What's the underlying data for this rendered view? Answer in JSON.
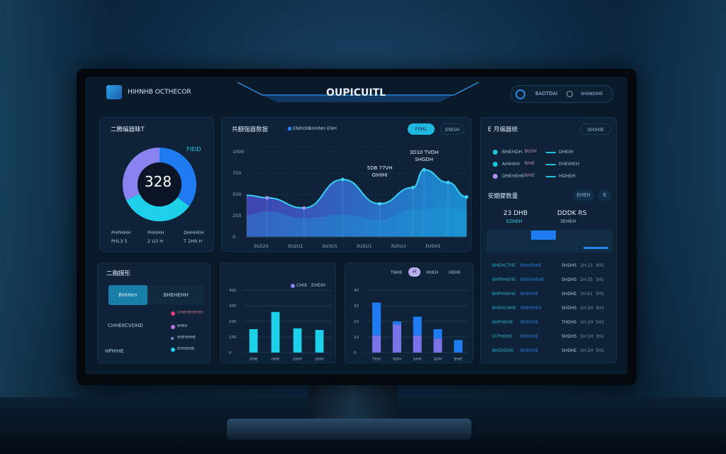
{
  "header": {
    "app_title": "HIHNHB OCTHECOR",
    "center_tab": "OUPICUITL",
    "user_label": "BADTDAI",
    "status_label": "SHSNDIHE"
  },
  "donut_panel": {
    "title": "二腾编器昧T",
    "total": "328",
    "badge": "FIEID",
    "segments": [
      {
        "name": "blue",
        "value": 35,
        "color": "#1e7bf0"
      },
      {
        "name": "cyan",
        "value": 33,
        "color": "#1fd0ea"
      },
      {
        "name": "purple",
        "value": 32,
        "color": "#8a82ee"
      }
    ],
    "legend": [
      {
        "label": "PHPHHH",
        "value": "PHL3 5"
      },
      {
        "label": "PHHHH",
        "value": "2 U3 H"
      },
      {
        "label": "DHHHEH",
        "value": "T 2H9 H"
      }
    ]
  },
  "line_panel": {
    "title": "共翻强器数据",
    "legend": [
      "ENROH",
      "BHHNH",
      "ENH"
    ],
    "btn_active": "FIIHL",
    "btn_other": "ENGH"
  },
  "chart_data": [
    {
      "type": "area",
      "yticks": [
        "1000",
        "750",
        "500",
        "250",
        "0"
      ],
      "ylim": [
        0,
        1000
      ],
      "categories": [
        "3U220",
        "3U2U1",
        "3U3U1",
        "3U2U1",
        "3U5U1",
        "3U5H1"
      ],
      "x": [
        0,
        0.55,
        1.55,
        2.6,
        3.6,
        4.5,
        4.8,
        5.45,
        5.95
      ],
      "series": [
        {
          "values": [
            490,
            460,
            340,
            675,
            390,
            580,
            790,
            640,
            470
          ]
        },
        {
          "values": [
            260,
            300,
            220,
            260,
            200,
            320,
            330,
            350,
            290
          ]
        }
      ],
      "annotations": [
        {
          "text": "5DB 77VH",
          "sub": "GIHIHI",
          "at": 3.6
        },
        {
          "text": "3D10 TVDH",
          "sub": "SHGDH",
          "at": 4.8
        }
      ]
    },
    {
      "type": "bar",
      "yticks": [
        "400",
        "300",
        "200",
        "100",
        "0"
      ],
      "ylim": [
        0,
        400
      ],
      "categories": [
        "OHE",
        "OHE",
        "OHH",
        "OHH"
      ],
      "legend": [
        "CHIE",
        "EHEIH"
      ],
      "values": [
        150,
        260,
        155,
        145
      ]
    },
    {
      "type": "bar-stacked",
      "yticks": [
        "40",
        "30",
        "20",
        "10",
        "0"
      ],
      "ylim": [
        0,
        40
      ],
      "categories": [
        "TDH",
        "SDH",
        "SHH",
        "SDH",
        "EHE"
      ],
      "tabs": [
        "TNHE",
        "H",
        "HHEH",
        "HEHE"
      ],
      "series": [
        {
          "name": "purple",
          "values": [
            11,
            18,
            11,
            9,
            0
          ]
        },
        {
          "name": "blue",
          "values": [
            21,
            2,
            12,
            6,
            8
          ]
        }
      ]
    }
  ],
  "tabs_panel": {
    "title": "二胸摸形",
    "tab_active": "BHHIen",
    "tab_other": "BHEHEHH",
    "rows": [
      {
        "label": "CHHEKCVDHD",
        "items": [
          "DHIEHEHEHEH",
          "BHEH"
        ]
      },
      {
        "label": "HPHIHE",
        "items": [
          "BHEHIHHE",
          "EHIHIHHE"
        ]
      }
    ]
  },
  "right_panel": {
    "title": "E 月编器统",
    "button": "SHIHIE",
    "legend": [
      {
        "name": "BHEHDH",
        "tag": "BUSH",
        "val": "DHEIH"
      },
      {
        "name": "AHIHIHI",
        "tag": "BHIE",
        "val": "EHEIHEH"
      },
      {
        "name": "DHEHEHE",
        "tag": "BHIE",
        "val": "HDHEH"
      }
    ],
    "sub_title": "安期骤数量",
    "sub_btn": "EHEH",
    "sub_btn2": "E",
    "metrics": [
      {
        "value": "23 DHB",
        "sub": "EZHEH"
      },
      {
        "value": "DDDK RS",
        "sub": "3EHEH"
      }
    ],
    "rows": [
      [
        "BHEHCTHE",
        "BHHEHHE",
        "SHDHS",
        "1H:13",
        "3H1"
      ],
      [
        "BHPHHEHE",
        "BHEHHEHE",
        "SHDHS",
        "1H:35",
        "3H1"
      ],
      [
        "BHPHHEHE",
        "BHEHHE",
        "SHDHE",
        "1H:E1",
        "3H1"
      ],
      [
        "BHEHCHHE",
        "BHEHHEH",
        "SHDHS",
        "1H:1H",
        "3H1"
      ],
      [
        "BHPHDHE",
        "BHEHHE",
        "THDHS",
        "1H:1H",
        "5H1"
      ],
      [
        "STPHDHE",
        "BHEHHE",
        "SHDHS",
        "1H:1H",
        "3H1"
      ],
      [
        "BHDHDHE",
        "BHEHHE",
        "SHDHE",
        "1H:1H",
        "3H1"
      ]
    ]
  },
  "colors": {
    "accent": "#1fd0ea",
    "blue": "#1e7bf0",
    "purple": "#8a82ee",
    "panel": "#0e2337"
  }
}
